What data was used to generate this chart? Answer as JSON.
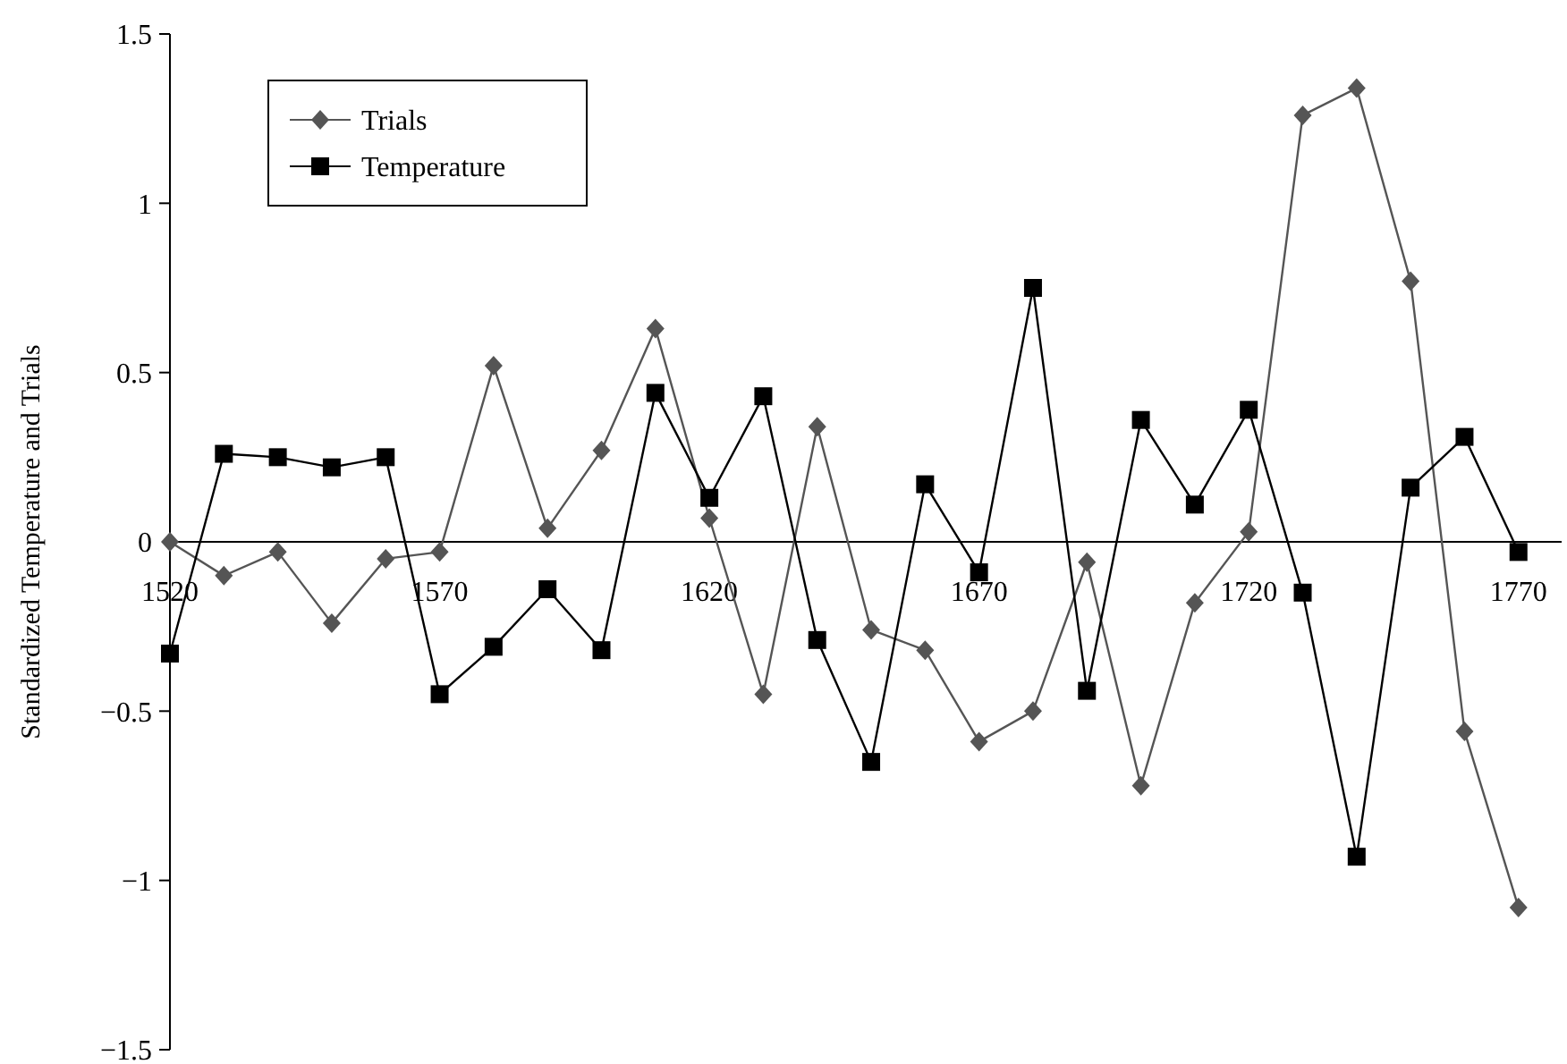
{
  "chart_data": {
    "type": "line",
    "ylabel": "Standardized Temperature and Trials",
    "x": [
      1520,
      1530,
      1540,
      1550,
      1560,
      1570,
      1580,
      1590,
      1600,
      1610,
      1620,
      1630,
      1640,
      1650,
      1660,
      1670,
      1680,
      1690,
      1700,
      1710,
      1720,
      1730,
      1740,
      1750,
      1760,
      1770
    ],
    "series": [
      {
        "name": "Trials",
        "color": "#555555",
        "marker": "diamond",
        "values": [
          0,
          -0.1,
          -0.03,
          -0.24,
          -0.05,
          -0.03,
          0.52,
          0.04,
          0.27,
          0.63,
          0.07,
          -0.45,
          0.34,
          -0.26,
          -0.32,
          -0.59,
          -0.5,
          -0.06,
          -0.72,
          -0.18,
          0.03,
          1.26,
          1.34,
          0.77,
          -0.56,
          -1.08
        ]
      },
      {
        "name": "Temperature",
        "color": "#000000",
        "marker": "square",
        "values": [
          -0.33,
          0.26,
          0.25,
          0.22,
          0.25,
          -0.45,
          -0.31,
          -0.14,
          -0.32,
          0.44,
          0.13,
          0.43,
          -0.29,
          -0.65,
          0.17,
          -0.09,
          0.75,
          -0.44,
          0.36,
          0.11,
          0.39,
          -0.15,
          -0.93,
          0.16,
          0.31,
          -0.03
        ]
      }
    ],
    "xlim": [
      1520,
      1778
    ],
    "xticks": [
      1520,
      1570,
      1620,
      1670,
      1720,
      1770
    ],
    "ylim": [
      -1.5,
      1.5
    ],
    "yticks": [
      {
        "value": -1.5,
        "label": "−1.5"
      },
      {
        "value": -1,
        "label": "−1"
      },
      {
        "value": -0.5,
        "label": "−0.5"
      },
      0,
      0.5,
      1,
      1.5
    ],
    "grid": false,
    "legend": "top left"
  }
}
